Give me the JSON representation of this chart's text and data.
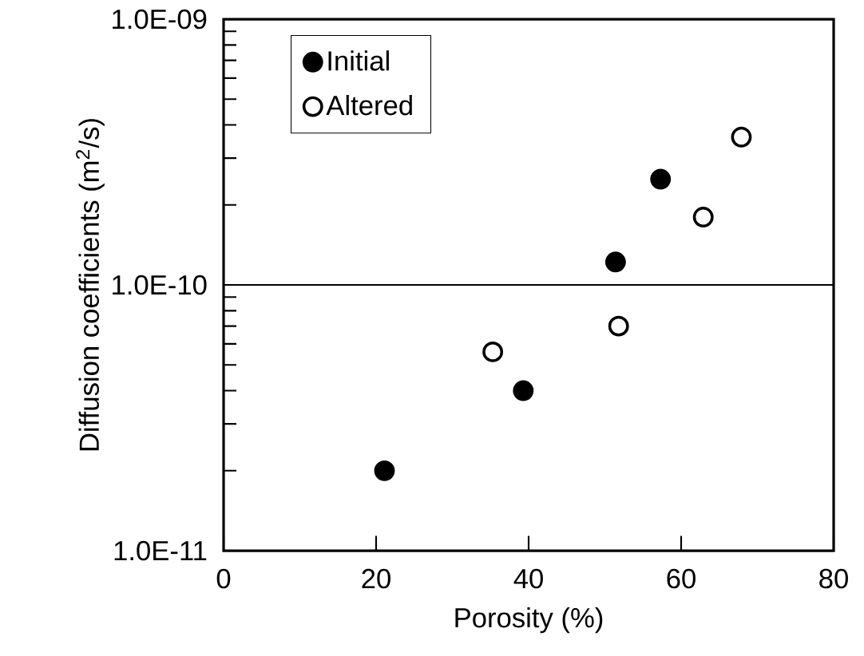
{
  "chart_data": {
    "type": "scatter",
    "xlabel": "Porosity (%)",
    "ylabel": "Diffusion coefficients (m$^{2}$/s)",
    "series": [
      {
        "name": "Initial",
        "color": "#000000",
        "x": [
          21.1,
          39.3,
          51.4,
          57.3
        ],
        "values": [
          2e-11,
          4e-11,
          1.22e-10,
          2.5e-10
        ]
      },
      {
        "name": "Altered",
        "color": "#ffffff",
        "x": [
          35.3,
          51.8,
          62.9,
          67.9
        ],
        "values": [
          5.6e-11,
          7e-11,
          1.8e-10,
          3.6e-10
        ]
      }
    ],
    "xlim": [
      0,
      80
    ],
    "xticks": [
      0,
      20,
      40,
      60,
      80
    ],
    "ylim": [
      1e-11,
      1e-09
    ],
    "yticks": [
      {
        "value": 1e-11,
        "label": "1.0E-11"
      },
      {
        "value": 1e-10,
        "label": "1.0E-10"
      },
      {
        "value": 1e-09,
        "label": "1.0E-09"
      }
    ],
    "log": "y",
    "marker": "circle",
    "legend": "top left",
    "ref_lines": [
      {
        "axis": "y",
        "value": 1e-10,
        "color": "#000000"
      }
    ]
  }
}
